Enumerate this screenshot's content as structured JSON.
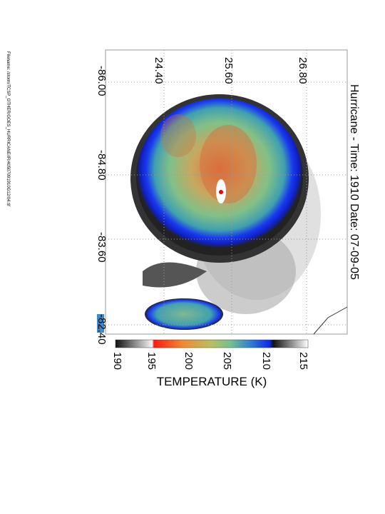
{
  "title": "Hurricane - Time: 1910 Date: 07-09-05",
  "filename": "Filename: /storm/TCSP_OTHER/GOES_HURRICANE/IR/40507091910G12/04.tif",
  "latitude_labels": [
    "24.40",
    "25.60",
    "26.80"
  ],
  "longitude_labels": [
    "-86.00",
    "-84.80",
    "-83.60",
    "-82.40"
  ],
  "colorbar": {
    "ticks": [
      "190",
      "195",
      "200",
      "205",
      "210",
      "215"
    ],
    "label": "TEMPERATURE (K)"
  }
}
